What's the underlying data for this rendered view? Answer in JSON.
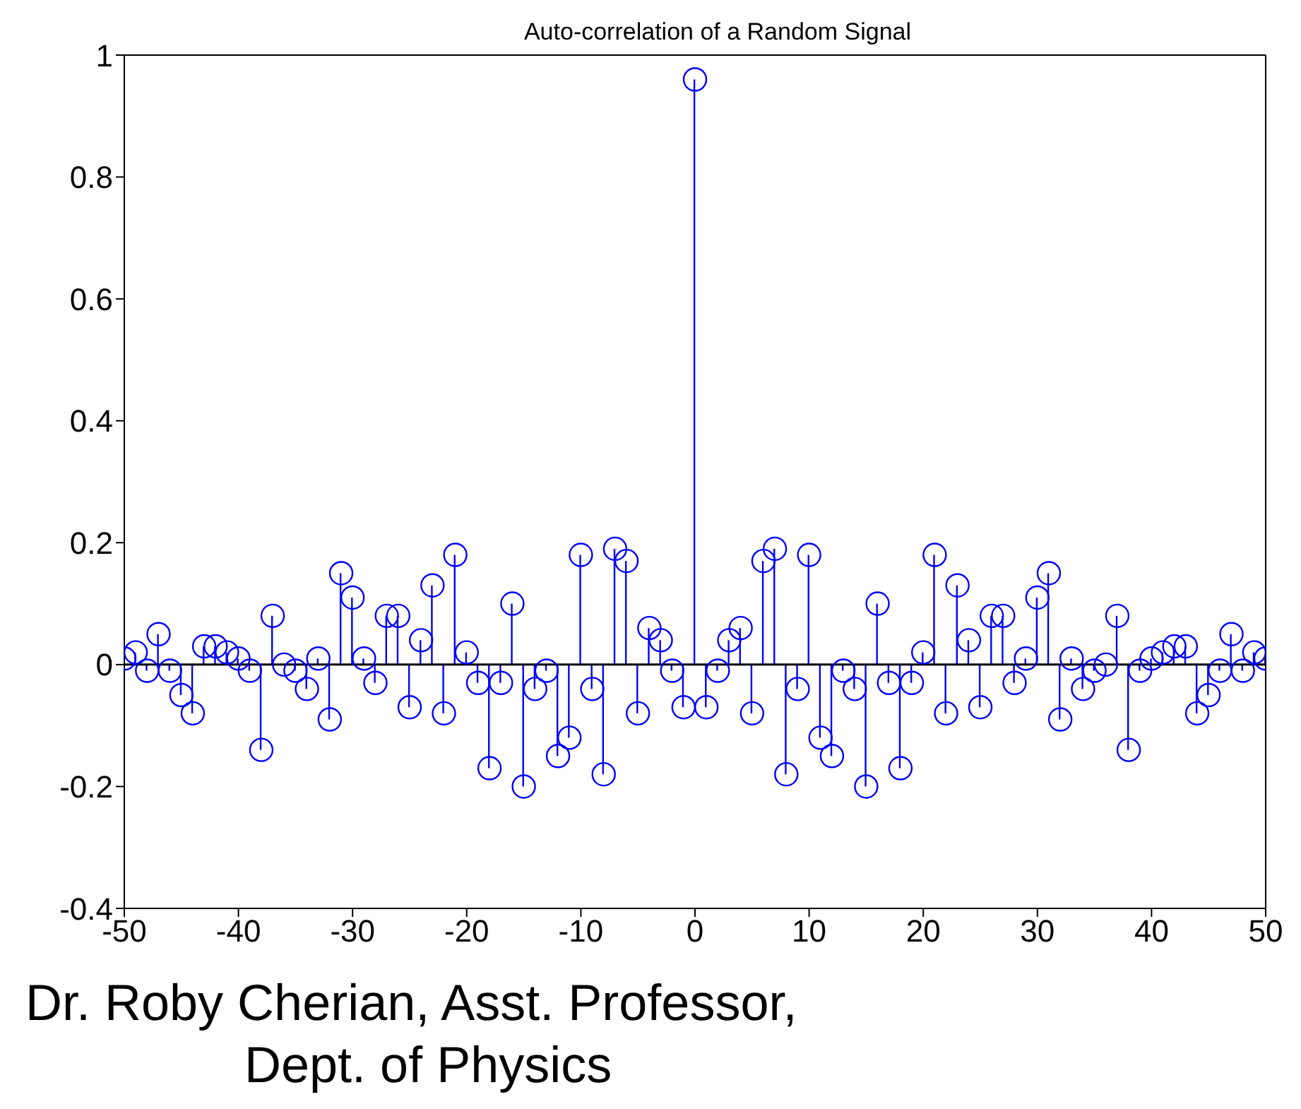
{
  "chart_data": {
    "type": "lollipop",
    "title": "Auto-correlation of a Random Signal",
    "x": [
      -50,
      -49,
      -48,
      -47,
      -46,
      -45,
      -44,
      -43,
      -42,
      -41,
      -40,
      -39,
      -38,
      -37,
      -36,
      -35,
      -34,
      -33,
      -32,
      -31,
      -30,
      -29,
      -28,
      -27,
      -26,
      -25,
      -24,
      -23,
      -22,
      -21,
      -20,
      -19,
      -18,
      -17,
      -16,
      -15,
      -14,
      -13,
      -12,
      -11,
      -10,
      -9,
      -8,
      -7,
      -6,
      -5,
      -4,
      -3,
      -2,
      -1,
      0,
      1,
      2,
      3,
      4,
      5,
      6,
      7,
      8,
      9,
      10,
      11,
      12,
      13,
      14,
      15,
      16,
      17,
      18,
      19,
      20,
      21,
      22,
      23,
      24,
      25,
      26,
      27,
      28,
      29,
      30,
      31,
      32,
      33,
      34,
      35,
      36,
      37,
      38,
      39,
      40,
      41,
      42,
      43,
      44,
      45,
      46,
      47,
      48,
      49,
      50
    ],
    "values": [
      0.01,
      0.02,
      -0.01,
      0.05,
      -0.01,
      -0.05,
      -0.08,
      0.03,
      0.03,
      0.02,
      0.01,
      -0.01,
      -0.14,
      0.08,
      0,
      -0.01,
      -0.04,
      0.01,
      -0.09,
      0.15,
      0.11,
      0.01,
      -0.03,
      0.08,
      0.08,
      -0.07,
      0.04,
      0.13,
      -0.08,
      0.18,
      0.02,
      -0.03,
      -0.17,
      -0.03,
      0.1,
      -0.2,
      -0.04,
      -0.01,
      -0.15,
      -0.12,
      0.18,
      -0.04,
      -0.18,
      0.19,
      0.17,
      -0.08,
      0.06,
      0.04,
      -0.01,
      -0.07,
      0.96,
      -0.07,
      -0.01,
      0.04,
      0.06,
      -0.08,
      0.17,
      0.19,
      -0.18,
      -0.04,
      0.18,
      -0.12,
      -0.15,
      -0.01,
      -0.04,
      -0.2,
      0.1,
      -0.03,
      -0.17,
      -0.03,
      0.02,
      0.18,
      -0.08,
      0.13,
      0.04,
      -0.07,
      0.08,
      0.08,
      -0.03,
      0.01,
      0.11,
      0.15,
      -0.09,
      0.01,
      -0.04,
      -0.01,
      0,
      0.08,
      -0.14,
      -0.01,
      0.01,
      0.02,
      0.03,
      0.03,
      -0.08,
      -0.05,
      -0.01,
      0.05,
      -0.01,
      0.02,
      0.01
    ],
    "color": "#0000ff",
    "marker": "circle",
    "grid": false,
    "legend": false,
    "xlim": [
      -50,
      50
    ],
    "xticks": [
      -50,
      -40,
      -30,
      -20,
      -10,
      0,
      10,
      20,
      30,
      40,
      50
    ],
    "ylim": [
      -0.4,
      1
    ],
    "yticks": [
      -0.4,
      -0.2,
      0,
      0.2,
      0.4,
      0.6,
      0.8,
      1
    ],
    "ref_lines": [
      {
        "axis": "y",
        "value": 0,
        "color": "#000000"
      }
    ],
    "annotations": [
      "Dr. Roby Cherian, Asst. Professor,",
      "Dept. of Physics"
    ]
  }
}
